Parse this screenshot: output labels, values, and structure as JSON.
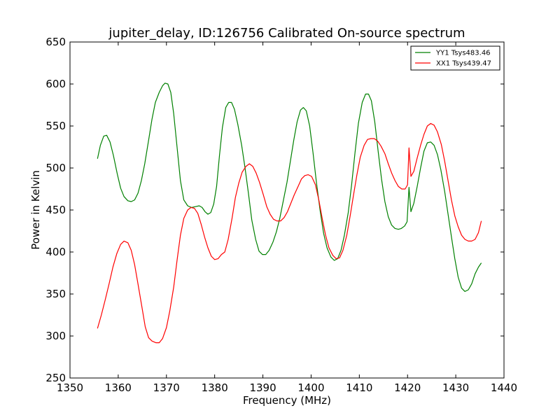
{
  "chart_data": {
    "type": "line",
    "title": "jupiter_delay, ID:126756 Calibrated On-source spectrum",
    "xlabel": "Frequency (MHz)",
    "ylabel": "Power in Kelvin",
    "xlim": [
      1350,
      1440
    ],
    "ylim": [
      250,
      650
    ],
    "xticks": [
      1350,
      1360,
      1370,
      1380,
      1390,
      1400,
      1410,
      1420,
      1430,
      1440
    ],
    "yticks": [
      250,
      300,
      350,
      400,
      450,
      500,
      550,
      600,
      650
    ],
    "grid": false,
    "legend_position": "top-right",
    "series": [
      {
        "name": "YY1 Tsys483.46",
        "color": "#008000",
        "points": [
          [
            1355.7,
            511
          ],
          [
            1356.3,
            527
          ],
          [
            1357.0,
            538
          ],
          [
            1357.6,
            539
          ],
          [
            1358.3,
            531
          ],
          [
            1359.0,
            515
          ],
          [
            1359.8,
            493
          ],
          [
            1360.5,
            476
          ],
          [
            1361.2,
            466
          ],
          [
            1362.0,
            461
          ],
          [
            1362.7,
            460
          ],
          [
            1363.4,
            462
          ],
          [
            1364.1,
            470
          ],
          [
            1364.8,
            485
          ],
          [
            1365.5,
            505
          ],
          [
            1366.3,
            533
          ],
          [
            1367.0,
            558
          ],
          [
            1367.7,
            578
          ],
          [
            1368.5,
            590
          ],
          [
            1369.2,
            598
          ],
          [
            1369.7,
            601
          ],
          [
            1370.3,
            600
          ],
          [
            1370.9,
            590
          ],
          [
            1371.5,
            565
          ],
          [
            1372.2,
            525
          ],
          [
            1372.9,
            485
          ],
          [
            1373.6,
            462
          ],
          [
            1374.4,
            455
          ],
          [
            1375.2,
            453
          ],
          [
            1376.0,
            454
          ],
          [
            1376.8,
            455
          ],
          [
            1377.4,
            453
          ],
          [
            1378.0,
            448
          ],
          [
            1378.6,
            445
          ],
          [
            1379.2,
            447
          ],
          [
            1379.8,
            457
          ],
          [
            1380.4,
            478
          ],
          [
            1381.0,
            515
          ],
          [
            1381.6,
            548
          ],
          [
            1382.3,
            572
          ],
          [
            1382.9,
            578
          ],
          [
            1383.5,
            578
          ],
          [
            1384.1,
            570
          ],
          [
            1384.8,
            552
          ],
          [
            1385.6,
            527
          ],
          [
            1386.3,
            500
          ],
          [
            1387.0,
            470
          ],
          [
            1387.7,
            438
          ],
          [
            1388.5,
            415
          ],
          [
            1389.2,
            401
          ],
          [
            1389.9,
            397
          ],
          [
            1390.6,
            397
          ],
          [
            1391.3,
            402
          ],
          [
            1392.1,
            412
          ],
          [
            1392.8,
            424
          ],
          [
            1393.5,
            440
          ],
          [
            1394.2,
            460
          ],
          [
            1395.0,
            483
          ],
          [
            1395.7,
            508
          ],
          [
            1396.4,
            533
          ],
          [
            1397.1,
            555
          ],
          [
            1397.8,
            569
          ],
          [
            1398.4,
            572
          ],
          [
            1399.0,
            568
          ],
          [
            1399.7,
            550
          ],
          [
            1400.4,
            518
          ],
          [
            1401.1,
            483
          ],
          [
            1401.9,
            448
          ],
          [
            1402.6,
            422
          ],
          [
            1403.3,
            405
          ],
          [
            1404.1,
            394
          ],
          [
            1404.8,
            390
          ],
          [
            1405.5,
            392
          ],
          [
            1406.2,
            402
          ],
          [
            1406.9,
            420
          ],
          [
            1407.7,
            447
          ],
          [
            1408.4,
            480
          ],
          [
            1409.1,
            518
          ],
          [
            1409.8,
            553
          ],
          [
            1410.6,
            578
          ],
          [
            1411.3,
            588
          ],
          [
            1411.9,
            588
          ],
          [
            1412.5,
            580
          ],
          [
            1413.2,
            555
          ],
          [
            1413.9,
            520
          ],
          [
            1414.6,
            487
          ],
          [
            1415.3,
            460
          ],
          [
            1416.0,
            442
          ],
          [
            1416.7,
            432
          ],
          [
            1417.4,
            428
          ],
          [
            1418.1,
            427
          ],
          [
            1418.7,
            428
          ],
          [
            1419.4,
            431
          ],
          [
            1419.9,
            436
          ],
          [
            1420.3,
            477
          ],
          [
            1420.7,
            448
          ],
          [
            1421.3,
            458
          ],
          [
            1422.0,
            478
          ],
          [
            1422.7,
            500
          ],
          [
            1423.4,
            520
          ],
          [
            1424.1,
            530
          ],
          [
            1424.8,
            531
          ],
          [
            1425.5,
            527
          ],
          [
            1426.2,
            516
          ],
          [
            1426.9,
            498
          ],
          [
            1427.7,
            472
          ],
          [
            1428.4,
            445
          ],
          [
            1429.1,
            418
          ],
          [
            1429.8,
            392
          ],
          [
            1430.5,
            370
          ],
          [
            1431.2,
            357
          ],
          [
            1431.9,
            353
          ],
          [
            1432.6,
            355
          ],
          [
            1433.3,
            362
          ],
          [
            1434.0,
            374
          ],
          [
            1434.7,
            382
          ],
          [
            1435.3,
            387
          ]
        ]
      },
      {
        "name": "XX1 Tsys439.47",
        "color": "#ff0000",
        "points": [
          [
            1355.7,
            309
          ],
          [
            1356.5,
            325
          ],
          [
            1357.3,
            343
          ],
          [
            1358.1,
            362
          ],
          [
            1358.9,
            382
          ],
          [
            1359.7,
            398
          ],
          [
            1360.5,
            409
          ],
          [
            1361.2,
            413
          ],
          [
            1362.0,
            411
          ],
          [
            1362.7,
            402
          ],
          [
            1363.4,
            385
          ],
          [
            1364.1,
            362
          ],
          [
            1364.9,
            335
          ],
          [
            1365.6,
            311
          ],
          [
            1366.3,
            298
          ],
          [
            1367.0,
            294
          ],
          [
            1367.8,
            292
          ],
          [
            1368.5,
            292
          ],
          [
            1369.2,
            297
          ],
          [
            1370.0,
            310
          ],
          [
            1370.7,
            330
          ],
          [
            1371.5,
            358
          ],
          [
            1372.2,
            390
          ],
          [
            1372.9,
            420
          ],
          [
            1373.6,
            440
          ],
          [
            1374.4,
            450
          ],
          [
            1375.1,
            453
          ],
          [
            1375.8,
            452
          ],
          [
            1376.5,
            446
          ],
          [
            1377.2,
            433
          ],
          [
            1377.9,
            418
          ],
          [
            1378.6,
            405
          ],
          [
            1379.3,
            395
          ],
          [
            1380.0,
            391
          ],
          [
            1380.7,
            392
          ],
          [
            1381.4,
            397
          ],
          [
            1382.1,
            400
          ],
          [
            1382.8,
            415
          ],
          [
            1383.6,
            440
          ],
          [
            1384.3,
            465
          ],
          [
            1385.0,
            482
          ],
          [
            1385.7,
            495
          ],
          [
            1386.5,
            502
          ],
          [
            1387.2,
            505
          ],
          [
            1387.9,
            502
          ],
          [
            1388.6,
            494
          ],
          [
            1389.3,
            483
          ],
          [
            1390.1,
            468
          ],
          [
            1390.8,
            454
          ],
          [
            1391.5,
            445
          ],
          [
            1392.2,
            439
          ],
          [
            1392.9,
            437
          ],
          [
            1393.7,
            437
          ],
          [
            1394.4,
            441
          ],
          [
            1395.1,
            448
          ],
          [
            1395.8,
            458
          ],
          [
            1396.5,
            468
          ],
          [
            1397.3,
            478
          ],
          [
            1398.0,
            487
          ],
          [
            1398.7,
            491
          ],
          [
            1399.4,
            492
          ],
          [
            1400.1,
            490
          ],
          [
            1400.9,
            480
          ],
          [
            1401.6,
            462
          ],
          [
            1402.3,
            440
          ],
          [
            1403.0,
            420
          ],
          [
            1403.7,
            405
          ],
          [
            1404.5,
            396
          ],
          [
            1405.2,
            392
          ],
          [
            1405.9,
            393
          ],
          [
            1406.6,
            402
          ],
          [
            1407.4,
            420
          ],
          [
            1408.1,
            443
          ],
          [
            1408.8,
            468
          ],
          [
            1409.5,
            492
          ],
          [
            1410.2,
            513
          ],
          [
            1411.0,
            527
          ],
          [
            1411.7,
            534
          ],
          [
            1412.4,
            535
          ],
          [
            1413.1,
            535
          ],
          [
            1413.8,
            532
          ],
          [
            1414.5,
            526
          ],
          [
            1415.3,
            517
          ],
          [
            1416.0,
            505
          ],
          [
            1416.7,
            494
          ],
          [
            1417.4,
            485
          ],
          [
            1418.1,
            478
          ],
          [
            1418.8,
            475
          ],
          [
            1419.5,
            475
          ],
          [
            1420.0,
            480
          ],
          [
            1420.3,
            524
          ],
          [
            1420.7,
            490
          ],
          [
            1421.3,
            496
          ],
          [
            1422.0,
            512
          ],
          [
            1422.7,
            527
          ],
          [
            1423.4,
            540
          ],
          [
            1424.1,
            550
          ],
          [
            1424.8,
            553
          ],
          [
            1425.5,
            551
          ],
          [
            1426.2,
            543
          ],
          [
            1427.0,
            528
          ],
          [
            1427.7,
            508
          ],
          [
            1428.4,
            485
          ],
          [
            1429.1,
            462
          ],
          [
            1429.8,
            443
          ],
          [
            1430.5,
            430
          ],
          [
            1431.2,
            420
          ],
          [
            1431.9,
            415
          ],
          [
            1432.6,
            413
          ],
          [
            1433.3,
            413
          ],
          [
            1434.0,
            415
          ],
          [
            1434.7,
            423
          ],
          [
            1435.3,
            437
          ]
        ]
      }
    ]
  }
}
